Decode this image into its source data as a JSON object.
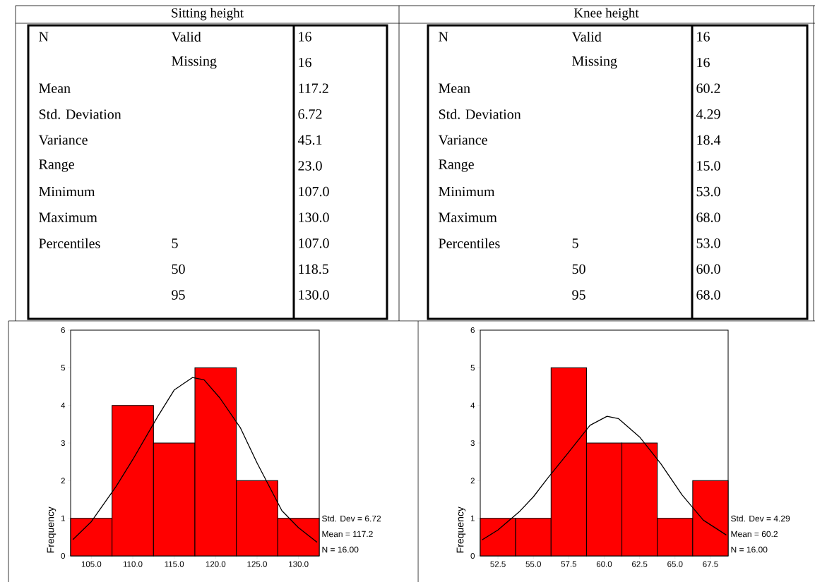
{
  "chart_data": [
    {
      "type": "other",
      "title": "Sitting height",
      "y_categories": [
        "N",
        null,
        "Mean",
        "Std. Deviation",
        "Variance",
        "Range",
        "Minimum",
        "Maximum",
        "Percentiles",
        null,
        null
      ],
      "y2_categories": [
        "Valid",
        "Missing",
        null,
        null,
        null,
        null,
        null,
        null,
        "5",
        "50",
        "95"
      ],
      "values": [
        16,
        16,
        117.2,
        6.72,
        45.1,
        23.0,
        107.0,
        130.0,
        107.0,
        118.5,
        130.0
      ],
      "value_labels": [
        "16",
        "16",
        "117.2",
        "6.72",
        "45.1",
        "23.0",
        "107.0",
        "130.0",
        "107.0",
        "118.5",
        "130.0"
      ]
    },
    {
      "type": "other",
      "title": "Knee height",
      "y_categories": [
        "N",
        null,
        "Mean",
        "Std. Deviation",
        "Variance",
        "Range",
        "Minimum",
        "Maximum",
        "Percentiles",
        null,
        null
      ],
      "y2_categories": [
        "Valid",
        "Missing",
        null,
        null,
        null,
        null,
        null,
        null,
        "5",
        "50",
        "95"
      ],
      "values": [
        16,
        16,
        60.2,
        4.29,
        18.4,
        15.0,
        53.0,
        68.0,
        53.0,
        60.0,
        68.0
      ],
      "value_labels": [
        "16",
        "16",
        "60.2",
        "4.29",
        "18.4",
        "15.0",
        "53.0",
        "68.0",
        "53.0",
        "60.0",
        "68.0"
      ]
    },
    {
      "type": "histogram",
      "bins": [
        102.5,
        107.5,
        112.5,
        117.5,
        122.5,
        127.5,
        132.5
      ],
      "values": [
        1,
        4,
        3,
        5,
        2,
        1
      ],
      "color": "#ff0000",
      "ylabel": "Frequency",
      "xlim": [
        102.5,
        132.5
      ],
      "ylim": [
        0,
        6
      ],
      "xticks": [
        {
          "value": 105,
          "label": "105.0"
        },
        {
          "value": 110,
          "label": "110.0"
        },
        {
          "value": 115,
          "label": "115.0"
        },
        {
          "value": 120,
          "label": "120.0"
        },
        {
          "value": 125,
          "label": "125.0"
        },
        {
          "value": 130,
          "label": "130.0"
        }
      ],
      "yticks": [
        0,
        1,
        2,
        3,
        4,
        5,
        6
      ],
      "series": [
        {
          "type": "line",
          "color": "#000000",
          "x": [
            102.8,
            105,
            108,
            110,
            113,
            115,
            117.2,
            118.6,
            120.5,
            123,
            125,
            128,
            130,
            132.2
          ],
          "values": [
            0.44,
            0.91,
            1.85,
            2.56,
            3.7,
            4.41,
            4.74,
            4.68,
            4.2,
            3.4,
            2.47,
            1.2,
            0.75,
            0.37
          ]
        }
      ],
      "annotations": [
        "Std. Dev = 6.72",
        "Mean = 117.2",
        "N = 16.00"
      ]
    },
    {
      "type": "histogram",
      "bins": [
        51.25,
        53.75,
        56.25,
        58.75,
        61.25,
        63.75,
        66.25,
        68.75
      ],
      "values": [
        1,
        1,
        5,
        3,
        3,
        1,
        2
      ],
      "color": "#ff0000",
      "ylabel": "Frequency",
      "xlim": [
        51.25,
        68.75
      ],
      "ylim": [
        0,
        6
      ],
      "xticks": [
        {
          "value": 52.5,
          "label": "52.5"
        },
        {
          "value": 55,
          "label": "55.0"
        },
        {
          "value": 57.5,
          "label": "57.5"
        },
        {
          "value": 60,
          "label": "60.0"
        },
        {
          "value": 62.5,
          "label": "62.5"
        },
        {
          "value": 65,
          "label": "65.0"
        },
        {
          "value": 67.5,
          "label": "67.5"
        }
      ],
      "yticks": [
        0,
        1,
        2,
        3,
        4,
        5,
        6
      ],
      "series": [
        {
          "type": "line",
          "color": "#000000",
          "x": [
            51.4,
            52.5,
            54,
            55,
            56,
            57.5,
            59,
            60.2,
            61,
            62.5,
            64,
            65.5,
            67,
            68.6
          ],
          "values": [
            0.43,
            0.69,
            1.17,
            1.57,
            2.06,
            2.76,
            3.47,
            3.71,
            3.65,
            3.16,
            2.45,
            1.62,
            0.95,
            0.56
          ]
        }
      ],
      "annotations": [
        "Std. Dev = 4.29",
        "Mean = 60.2",
        "N = 16.00"
      ]
    }
  ]
}
